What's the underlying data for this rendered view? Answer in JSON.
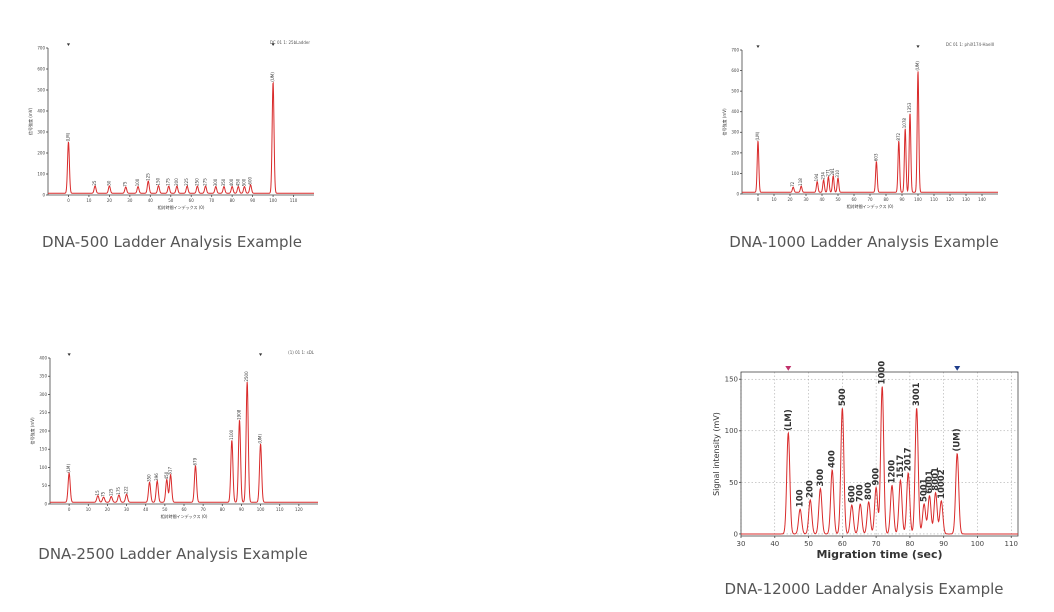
{
  "chart_data": [
    {
      "type": "line",
      "caption": "DNA-500 Ladder Analysis Example",
      "header_text": "DC 01 1: 25bLadder",
      "ylabel": "信号強度 (mV)",
      "xlabel": "相対時間インデックス (0)",
      "xlim": [
        -10,
        120
      ],
      "ylim": [
        0,
        700
      ],
      "x_ticks": [
        0,
        10,
        20,
        30,
        40,
        50,
        60,
        70,
        80,
        90,
        100,
        110
      ],
      "y_ticks": [
        0,
        100,
        200,
        300,
        400,
        500,
        600,
        700
      ],
      "markers_x": [
        0,
        100
      ],
      "peaks": [
        {
          "x": 0,
          "y": 245,
          "label": "(LM)"
        },
        {
          "x": 13,
          "y": 35,
          "label": "25"
        },
        {
          "x": 20,
          "y": 35,
          "label": "50"
        },
        {
          "x": 28,
          "y": 30,
          "label": "75"
        },
        {
          "x": 34,
          "y": 32,
          "label": "100"
        },
        {
          "x": 39,
          "y": 58,
          "label": "125"
        },
        {
          "x": 44,
          "y": 36,
          "label": "150"
        },
        {
          "x": 49,
          "y": 34,
          "label": "175"
        },
        {
          "x": 53,
          "y": 34,
          "label": "200"
        },
        {
          "x": 58,
          "y": 34,
          "label": "225"
        },
        {
          "x": 63,
          "y": 34,
          "label": "250"
        },
        {
          "x": 67,
          "y": 34,
          "label": "275"
        },
        {
          "x": 72,
          "y": 32,
          "label": "300"
        },
        {
          "x": 76,
          "y": 32,
          "label": "350"
        },
        {
          "x": 80,
          "y": 32,
          "label": "400"
        },
        {
          "x": 83,
          "y": 32,
          "label": "450"
        },
        {
          "x": 86,
          "y": 32,
          "label": "500"
        },
        {
          "x": 89,
          "y": 40,
          "label": "600"
        },
        {
          "x": 100,
          "y": 530,
          "label": "(UM)"
        }
      ]
    },
    {
      "type": "line",
      "caption": "DNA-1000 Ladder Analysis Example",
      "header_text": "DC 01 1: phiX174-HaeIII",
      "ylabel": "信号強度 (mV)",
      "xlabel": "相対時間インデックス (0)",
      "xlim": [
        -10,
        150
      ],
      "ylim": [
        0,
        700
      ],
      "x_ticks": [
        0,
        10,
        20,
        30,
        40,
        50,
        60,
        70,
        80,
        90,
        100,
        110,
        120,
        130,
        140
      ],
      "y_ticks": [
        0,
        100,
        200,
        300,
        400,
        500,
        600,
        700
      ],
      "markers_x": [
        0,
        100
      ],
      "peaks": [
        {
          "x": 0,
          "y": 250,
          "label": "(LM)"
        },
        {
          "x": 22,
          "y": 25,
          "label": "72"
        },
        {
          "x": 27,
          "y": 30,
          "label": "118"
        },
        {
          "x": 37,
          "y": 52,
          "label": "194"
        },
        {
          "x": 41,
          "y": 60,
          "label": "234"
        },
        {
          "x": 44,
          "y": 75,
          "label": "271"
        },
        {
          "x": 47,
          "y": 80,
          "label": "281"
        },
        {
          "x": 50,
          "y": 70,
          "label": "310"
        },
        {
          "x": 74,
          "y": 150,
          "label": "603"
        },
        {
          "x": 88,
          "y": 250,
          "label": "872"
        },
        {
          "x": 92,
          "y": 310,
          "label": "1078"
        },
        {
          "x": 95,
          "y": 385,
          "label": "1353"
        },
        {
          "x": 100,
          "y": 590,
          "label": "(UM)"
        }
      ]
    },
    {
      "type": "line",
      "caption": "DNA-2500 Ladder Analysis Example",
      "header_text": "(1) 01 1: sDL",
      "ylabel": "信号強度 (mV)",
      "xlabel": "相対時間インデックス (0)",
      "xlim": [
        -10,
        130
      ],
      "ylim": [
        0,
        400
      ],
      "x_ticks": [
        0,
        10,
        20,
        30,
        40,
        50,
        60,
        70,
        80,
        90,
        100,
        110,
        120
      ],
      "y_ticks": [
        0,
        50,
        100,
        150,
        200,
        250,
        300,
        350,
        400
      ],
      "markers_x": [
        0,
        100
      ],
      "peaks": [
        {
          "x": 0,
          "y": 80,
          "label": "(LM)"
        },
        {
          "x": 15,
          "y": 18,
          "label": "15"
        },
        {
          "x": 18,
          "y": 14,
          "label": "75"
        },
        {
          "x": 22,
          "y": 16,
          "label": "125"
        },
        {
          "x": 26,
          "y": 20,
          "label": "175"
        },
        {
          "x": 30,
          "y": 22,
          "label": "222"
        },
        {
          "x": 42,
          "y": 55,
          "label": "350"
        },
        {
          "x": 46,
          "y": 58,
          "label": "396"
        },
        {
          "x": 51,
          "y": 62,
          "label": "450"
        },
        {
          "x": 53,
          "y": 75,
          "label": "517"
        },
        {
          "x": 66,
          "y": 100,
          "label": "679"
        },
        {
          "x": 85,
          "y": 170,
          "label": "1100"
        },
        {
          "x": 89,
          "y": 225,
          "label": "1908"
        },
        {
          "x": 93,
          "y": 330,
          "label": "2500"
        },
        {
          "x": 100,
          "y": 160,
          "label": "(UM)"
        }
      ]
    },
    {
      "type": "line",
      "caption": "DNA-12000 Ladder Analysis Example",
      "ylabel": "Signal intensity (mV)",
      "xlabel": "Migration time (sec)",
      "xlim": [
        30,
        112
      ],
      "ylim": [
        -2,
        157
      ],
      "x_ticks": [
        30,
        40,
        50,
        60,
        70,
        80,
        90,
        100,
        110
      ],
      "y_ticks": [
        0,
        50,
        100,
        150
      ],
      "grid": true,
      "markers_x": [
        44,
        94
      ],
      "peaks": [
        {
          "x": 44,
          "y": 98,
          "label": "(LM)"
        },
        {
          "x": 47.5,
          "y": 24,
          "label": "100"
        },
        {
          "x": 50.5,
          "y": 33,
          "label": "200"
        },
        {
          "x": 53.5,
          "y": 44,
          "label": "300"
        },
        {
          "x": 57,
          "y": 62,
          "label": "400"
        },
        {
          "x": 60,
          "y": 122,
          "label": "500"
        },
        {
          "x": 62.8,
          "y": 28,
          "label": "600"
        },
        {
          "x": 65.3,
          "y": 29,
          "label": "700"
        },
        {
          "x": 67.8,
          "y": 31,
          "label": "800"
        },
        {
          "x": 70,
          "y": 45,
          "label": "900"
        },
        {
          "x": 71.8,
          "y": 143,
          "label": "1000"
        },
        {
          "x": 74.7,
          "y": 47,
          "label": "1200"
        },
        {
          "x": 77.2,
          "y": 52,
          "label": "1517"
        },
        {
          "x": 79.5,
          "y": 59,
          "label": "2017"
        },
        {
          "x": 82,
          "y": 122,
          "label": "3001"
        },
        {
          "x": 84.2,
          "y": 29,
          "label": "5001"
        },
        {
          "x": 85.8,
          "y": 37,
          "label": "6001"
        },
        {
          "x": 87.6,
          "y": 40,
          "label": "8001"
        },
        {
          "x": 89.3,
          "y": 32,
          "label": "10002"
        },
        {
          "x": 94,
          "y": 78,
          "label": "(UM)"
        }
      ]
    }
  ]
}
